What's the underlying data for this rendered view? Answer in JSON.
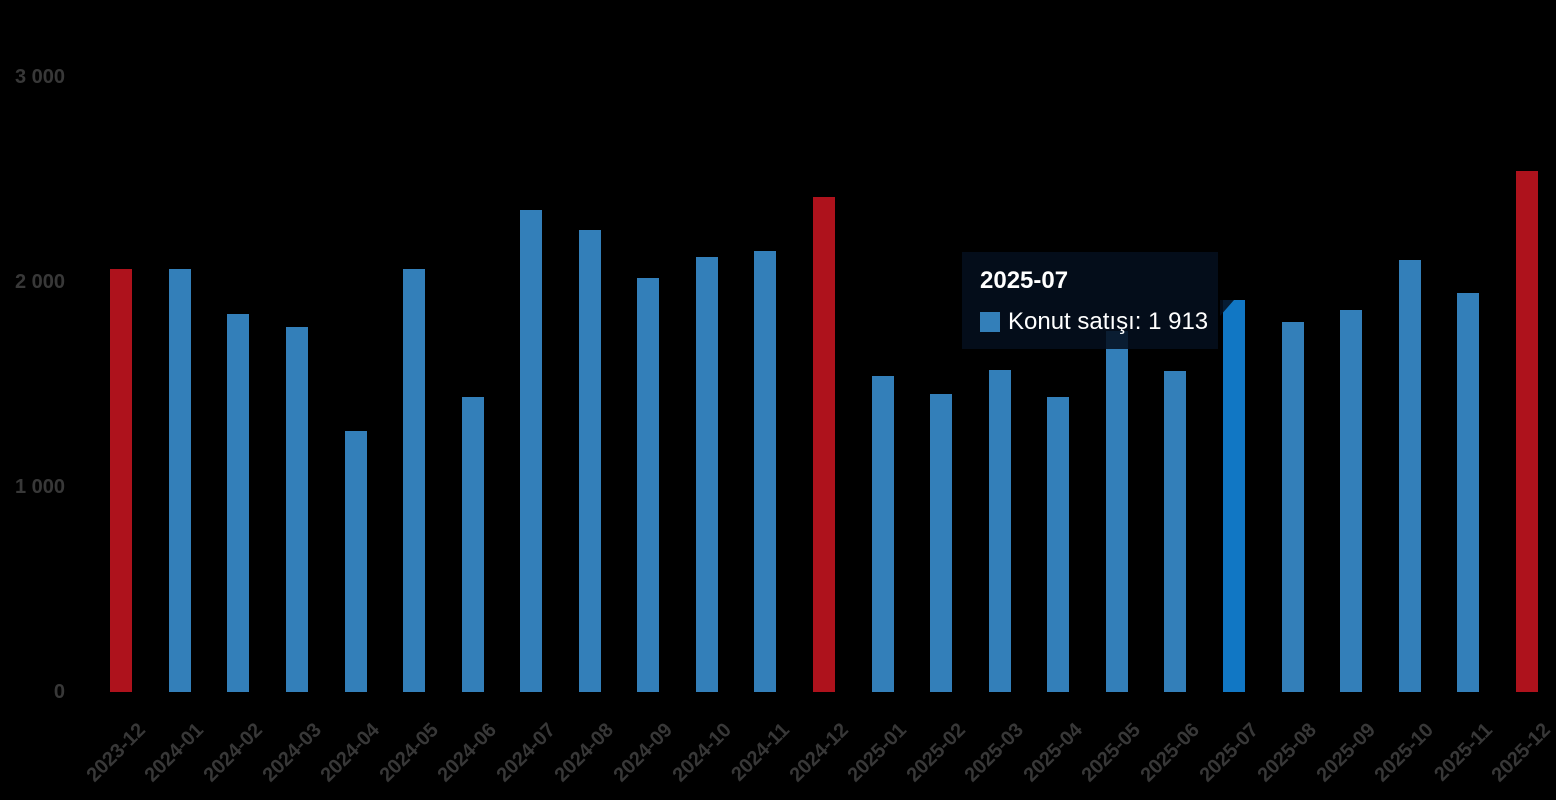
{
  "chart_data": {
    "type": "bar",
    "title": "",
    "series": [
      {
        "name": "Konut satışı",
        "values": [
          2065,
          2065,
          1845,
          1780,
          1275,
          2065,
          1440,
          2350,
          2255,
          2020,
          2120,
          2150,
          2415,
          1540,
          1455,
          1570,
          1440,
          1760,
          1565,
          1913,
          1805,
          1865,
          2105,
          1945,
          2540
        ]
      }
    ],
    "categories": [
      "2023-12",
      "2024-01",
      "2024-02",
      "2024-03",
      "2024-04",
      "2024-05",
      "2024-06",
      "2024-07",
      "2024-08",
      "2024-09",
      "2024-10",
      "2024-11",
      "2024-12",
      "2025-01",
      "2025-02",
      "2025-03",
      "2025-04",
      "2025-05",
      "2025-06",
      "2025-07",
      "2025-08",
      "2025-09",
      "2025-10",
      "2025-11",
      "2025-12"
    ],
    "highlighted_categories": [
      "2023-12",
      "2024-12",
      "2025-12"
    ],
    "hovered_category": "2025-07",
    "hovered_value_exact": 1913,
    "xlabel": "",
    "ylabel": "",
    "ylim": [
      0,
      3000
    ],
    "y_ticks": [
      {
        "value": 0,
        "label": "0"
      },
      {
        "value": 1000,
        "label": "1 000"
      },
      {
        "value": 2000,
        "label": "2 000"
      },
      {
        "value": 3000,
        "label": "3 000"
      }
    ],
    "grid": false,
    "legend_position": "none",
    "x_labels_rotation_deg": -45
  },
  "tooltip": {
    "title": "2025-07",
    "series_label": "Konut satışı",
    "value_display": "1 913",
    "text": "Konut satışı: 1 913",
    "marker_icon": "series-square-icon"
  },
  "colors": {
    "background": "#000000",
    "bar_default": "#337fb9",
    "bar_hover": "#1177c4",
    "bar_highlight": "#ae121c",
    "axis_text": "#383838",
    "tooltip_text": "#ffffff"
  }
}
